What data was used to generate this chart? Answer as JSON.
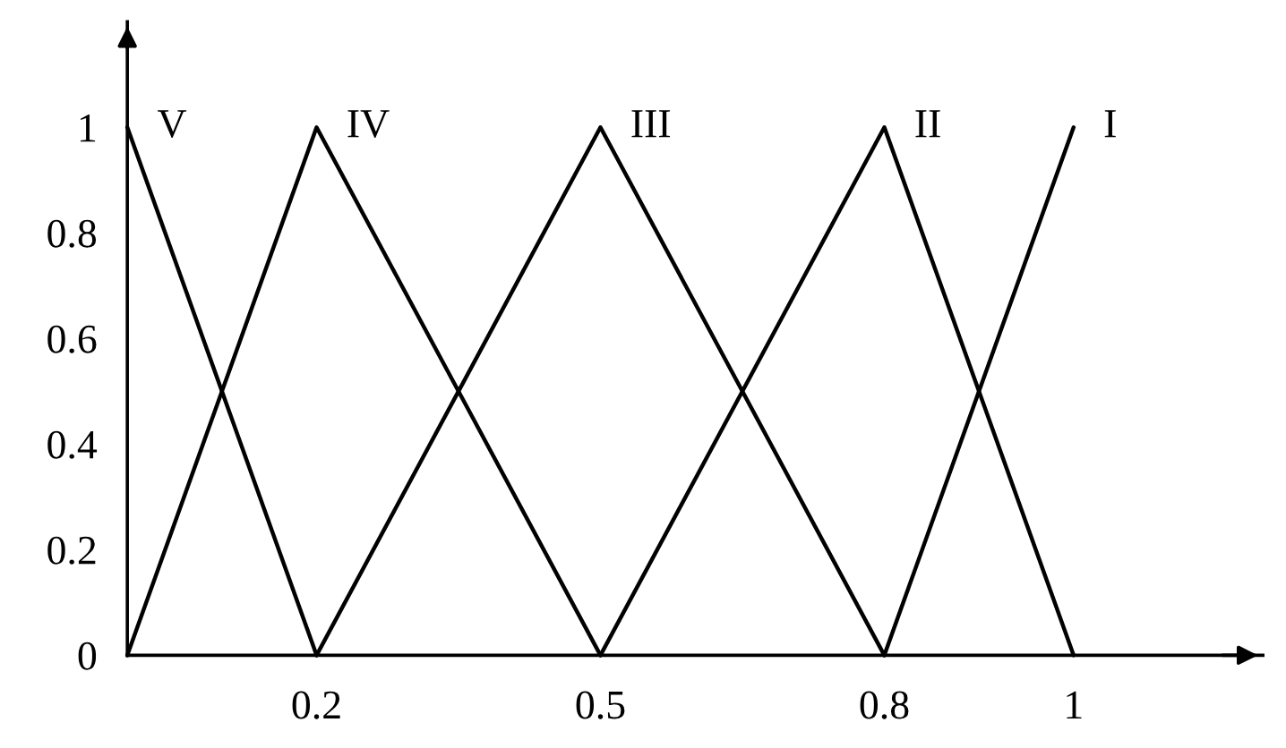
{
  "chart_data": {
    "type": "line",
    "series": [
      {
        "name": "V",
        "color": "#000000",
        "x": [
          0,
          0.2
        ],
        "values": [
          1,
          0
        ]
      },
      {
        "name": "IV",
        "color": "#000000",
        "x": [
          0,
          0.2,
          0.5
        ],
        "values": [
          0,
          1,
          0
        ]
      },
      {
        "name": "III",
        "color": "#000000",
        "x": [
          0.2,
          0.5,
          0.8
        ],
        "values": [
          0,
          1,
          0
        ]
      },
      {
        "name": "II",
        "color": "#000000",
        "x": [
          0.5,
          0.8,
          1
        ],
        "values": [
          0,
          1,
          0
        ]
      },
      {
        "name": "I",
        "color": "#000000",
        "x": [
          0.8,
          1
        ],
        "values": [
          0,
          1
        ]
      }
    ],
    "xlim": [
      0,
      1.2
    ],
    "ylim": [
      0,
      1.2
    ],
    "xticks": [
      0.2,
      0.5,
      0.8,
      1
    ],
    "yticks": [
      0,
      0.2,
      0.4,
      0.6,
      0.8,
      1
    ],
    "grid": false,
    "legend": false,
    "marker": "none",
    "line_style": "solid"
  }
}
